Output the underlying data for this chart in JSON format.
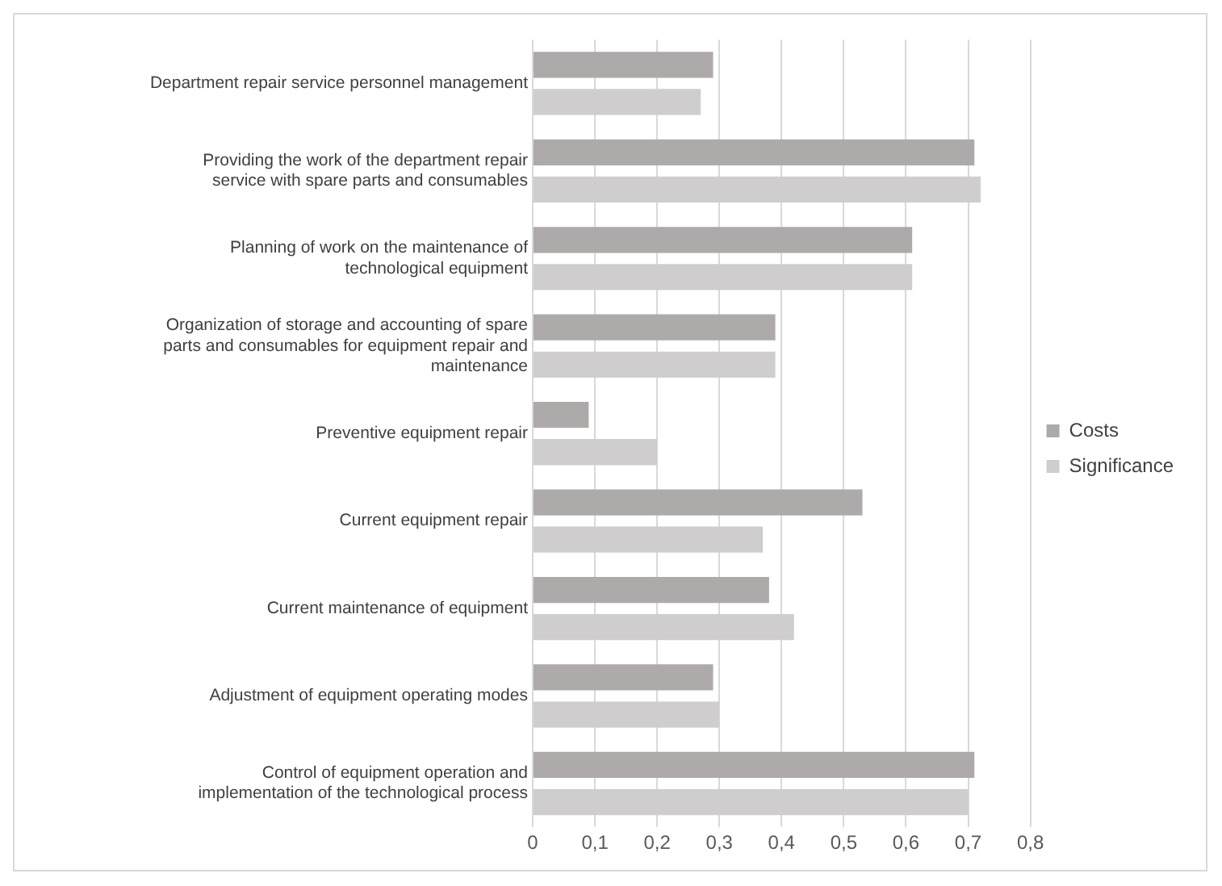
{
  "chart_data": {
    "type": "bar",
    "orientation": "horizontal",
    "categories": [
      "Department repair service personnel management",
      "Providing the work of the department repair service with spare parts and consumables",
      "Planning of work on the maintenance of technological equipment",
      "Organization of storage and accounting of spare parts and consumables for equipment repair and maintenance",
      "Preventive equipment repair",
      "Current equipment repair",
      "Current maintenance of equipment",
      "Adjustment of equipment operating modes",
      "Control of equipment operation and implementation of the technological process"
    ],
    "series": [
      {
        "name": "Costs",
        "color": "#aeaaaa",
        "values": [
          0.29,
          0.71,
          0.61,
          0.39,
          0.09,
          0.53,
          0.38,
          0.29,
          0.71
        ]
      },
      {
        "name": "Significance",
        "color": "#cfcdcd",
        "values": [
          0.27,
          0.72,
          0.61,
          0.39,
          0.2,
          0.37,
          0.42,
          0.3,
          0.7
        ]
      }
    ],
    "xlim": [
      0,
      0.8
    ],
    "xticks": [
      {
        "value": 0,
        "label": "0"
      },
      {
        "value": 0.1,
        "label": "0,1"
      },
      {
        "value": 0.2,
        "label": "0,2"
      },
      {
        "value": 0.3,
        "label": "0,3"
      },
      {
        "value": 0.4,
        "label": "0,4"
      },
      {
        "value": 0.5,
        "label": "0,5"
      },
      {
        "value": 0.6,
        "label": "0,6"
      },
      {
        "value": 0.7,
        "label": "0,7"
      },
      {
        "value": 0.8,
        "label": "0,8"
      }
    ],
    "grid": "x",
    "legend": "right"
  }
}
